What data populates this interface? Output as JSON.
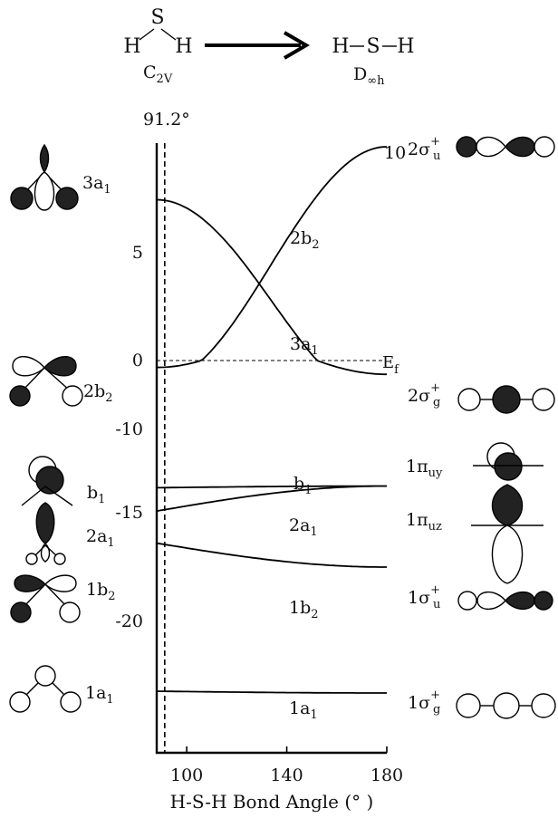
{
  "header": {
    "left_molecule": {
      "top": "S",
      "left": "H",
      "right": "H"
    },
    "left_group": {
      "main": "C",
      "sub": "2V"
    },
    "right_molecule": {
      "atoms": [
        "H",
        "S",
        "H"
      ]
    },
    "right_group": {
      "main": "D",
      "sub": "∞h"
    }
  },
  "angle_marker": "91.2°",
  "fermi_label": {
    "main": "E",
    "sub": "f"
  },
  "chart_data": {
    "type": "line",
    "xlabel": "H-S-H Bond Angle (°  )",
    "x_ticks": [
      100,
      140,
      180
    ],
    "y_ticks": [
      10,
      5,
      0,
      -10,
      -15,
      -20
    ],
    "reference_angle": 91.2,
    "fermi_level": 0,
    "series": [
      {
        "name": "2b2",
        "x": [
          88,
          180
        ],
        "y": [
          -1,
          10
        ]
      },
      {
        "name": "3a1",
        "x": [
          88,
          180
        ],
        "y": [
          7.5,
          -2
        ]
      },
      {
        "name": "b1",
        "x": [
          88,
          180
        ],
        "y": [
          -13.5,
          -13.4
        ]
      },
      {
        "name": "2a1",
        "x": [
          88,
          180
        ],
        "y": [
          -14.9,
          -13.4
        ]
      },
      {
        "name": "1b2",
        "x": [
          88,
          180
        ],
        "y": [
          -16.4,
          -17.5
        ]
      },
      {
        "name": "1a1",
        "x": [
          88,
          180
        ],
        "y": [
          -22,
          -22.1
        ]
      }
    ],
    "curve_labels": [
      {
        "main": "2b",
        "sub": "2"
      },
      {
        "main": "3a",
        "sub": "1"
      },
      {
        "main": "b",
        "sub": "1"
      },
      {
        "main": "2a",
        "sub": "1"
      },
      {
        "main": "1b",
        "sub": "2"
      },
      {
        "main": "1a",
        "sub": "1"
      }
    ]
  },
  "left_orbitals": [
    {
      "main": "3a",
      "sub": "1"
    },
    {
      "main": "2b",
      "sub": "2"
    },
    {
      "main": "b",
      "sub": "1"
    },
    {
      "main": "2a",
      "sub": "1"
    },
    {
      "main": "1b",
      "sub": "2"
    },
    {
      "main": "1a",
      "sub": "1"
    }
  ],
  "right_orbitals": [
    {
      "main": "2σ",
      "sub": "u",
      "sup": "+"
    },
    {
      "main": "2σ",
      "sub": "g",
      "sup": "+"
    },
    {
      "main": "1π",
      "sub": "uy",
      "sup": ""
    },
    {
      "main": "1π",
      "sub": "uz",
      "sup": ""
    },
    {
      "main": "1σ",
      "sub": "u",
      "sup": "+"
    },
    {
      "main": "1σ",
      "sub": "g",
      "sup": "+"
    }
  ]
}
